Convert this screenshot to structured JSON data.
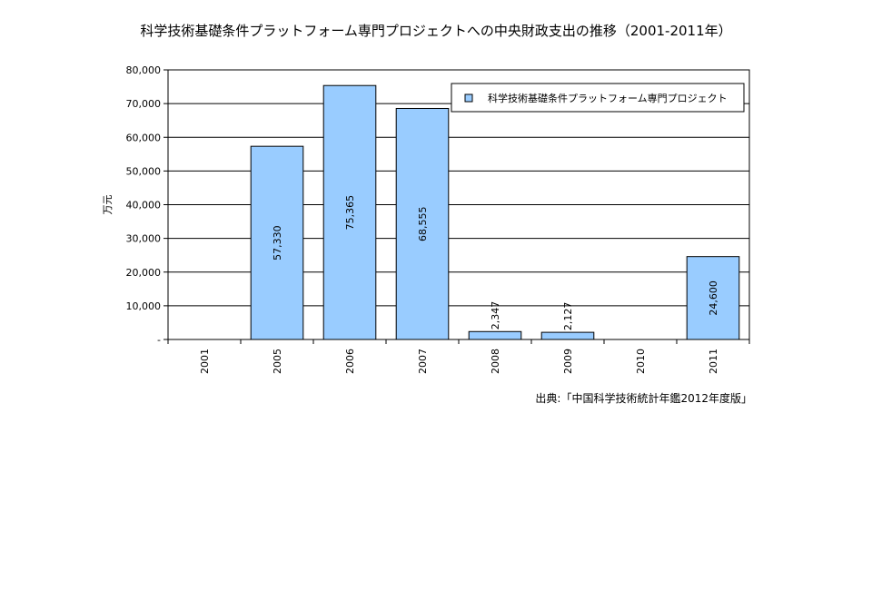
{
  "source": "出典:「中国科学技術統計年鑑2012年度版」",
  "chart_data": {
    "type": "bar",
    "title": "科学技術基礎条件プラットフォーム専門プロジェクトへの中央財政支出の推移（2001-2011年）",
    "xlabel": "",
    "ylabel": "万元",
    "categories": [
      "2001",
      "2005",
      "2006",
      "2007",
      "2008",
      "2009",
      "2010",
      "2011"
    ],
    "series": [
      {
        "name": "科学技術基礎条件プラットフォーム専門プロジェクト",
        "values": [
          0,
          57330,
          75365,
          68555,
          2347,
          2127,
          0,
          24600
        ],
        "labels": [
          "",
          "57,330",
          "75,365",
          "68,555",
          "2,347",
          "2,127",
          "",
          "24,600"
        ]
      }
    ],
    "ylim": [
      0,
      80000
    ],
    "yticks": [
      0,
      10000,
      20000,
      30000,
      40000,
      50000,
      60000,
      70000,
      80000
    ],
    "ytick_labels": [
      "-",
      "10,000",
      "20,000",
      "30,000",
      "40,000",
      "50,000",
      "60,000",
      "70,000",
      "80,000"
    ],
    "grid": true,
    "legend_position": "top-right",
    "colors": {
      "bar_fill": "#99ccff",
      "bar_stroke": "#000000",
      "grid": "#000000",
      "background": "#ffffff"
    }
  }
}
